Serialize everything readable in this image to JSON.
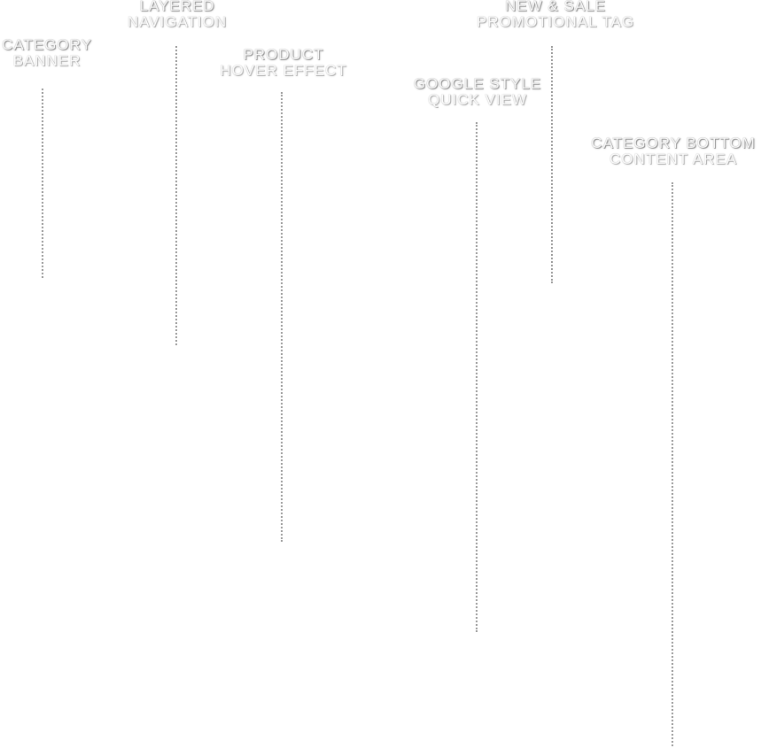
{
  "callouts": [
    {
      "id": "category-banner",
      "line1": "CATEGORY",
      "line2": "BANNER"
    },
    {
      "id": "layered-navigation",
      "line1": "LAYERED",
      "line2": "NAVIGATION"
    },
    {
      "id": "product-hover-effect",
      "line1": "PRODUCT",
      "line2": "HOVER EFFECT"
    },
    {
      "id": "google-style-quick-view",
      "line1": "GOOGLE STYLE",
      "line2": "QUICK VIEW"
    },
    {
      "id": "new-sale-promotional-tag",
      "line1": "NEW & SALE",
      "line2": "PROMOTIONAL TAG"
    },
    {
      "id": "category-bottom-content-area",
      "line1": "CATEGORY BOTTOM",
      "line2": "CONTENT AREA"
    }
  ],
  "colors": {
    "label_face": "#f7f7f7",
    "label_outline": "#9c9c9c",
    "leader_dots": "#9a9a9a",
    "background": "#ffffff"
  }
}
